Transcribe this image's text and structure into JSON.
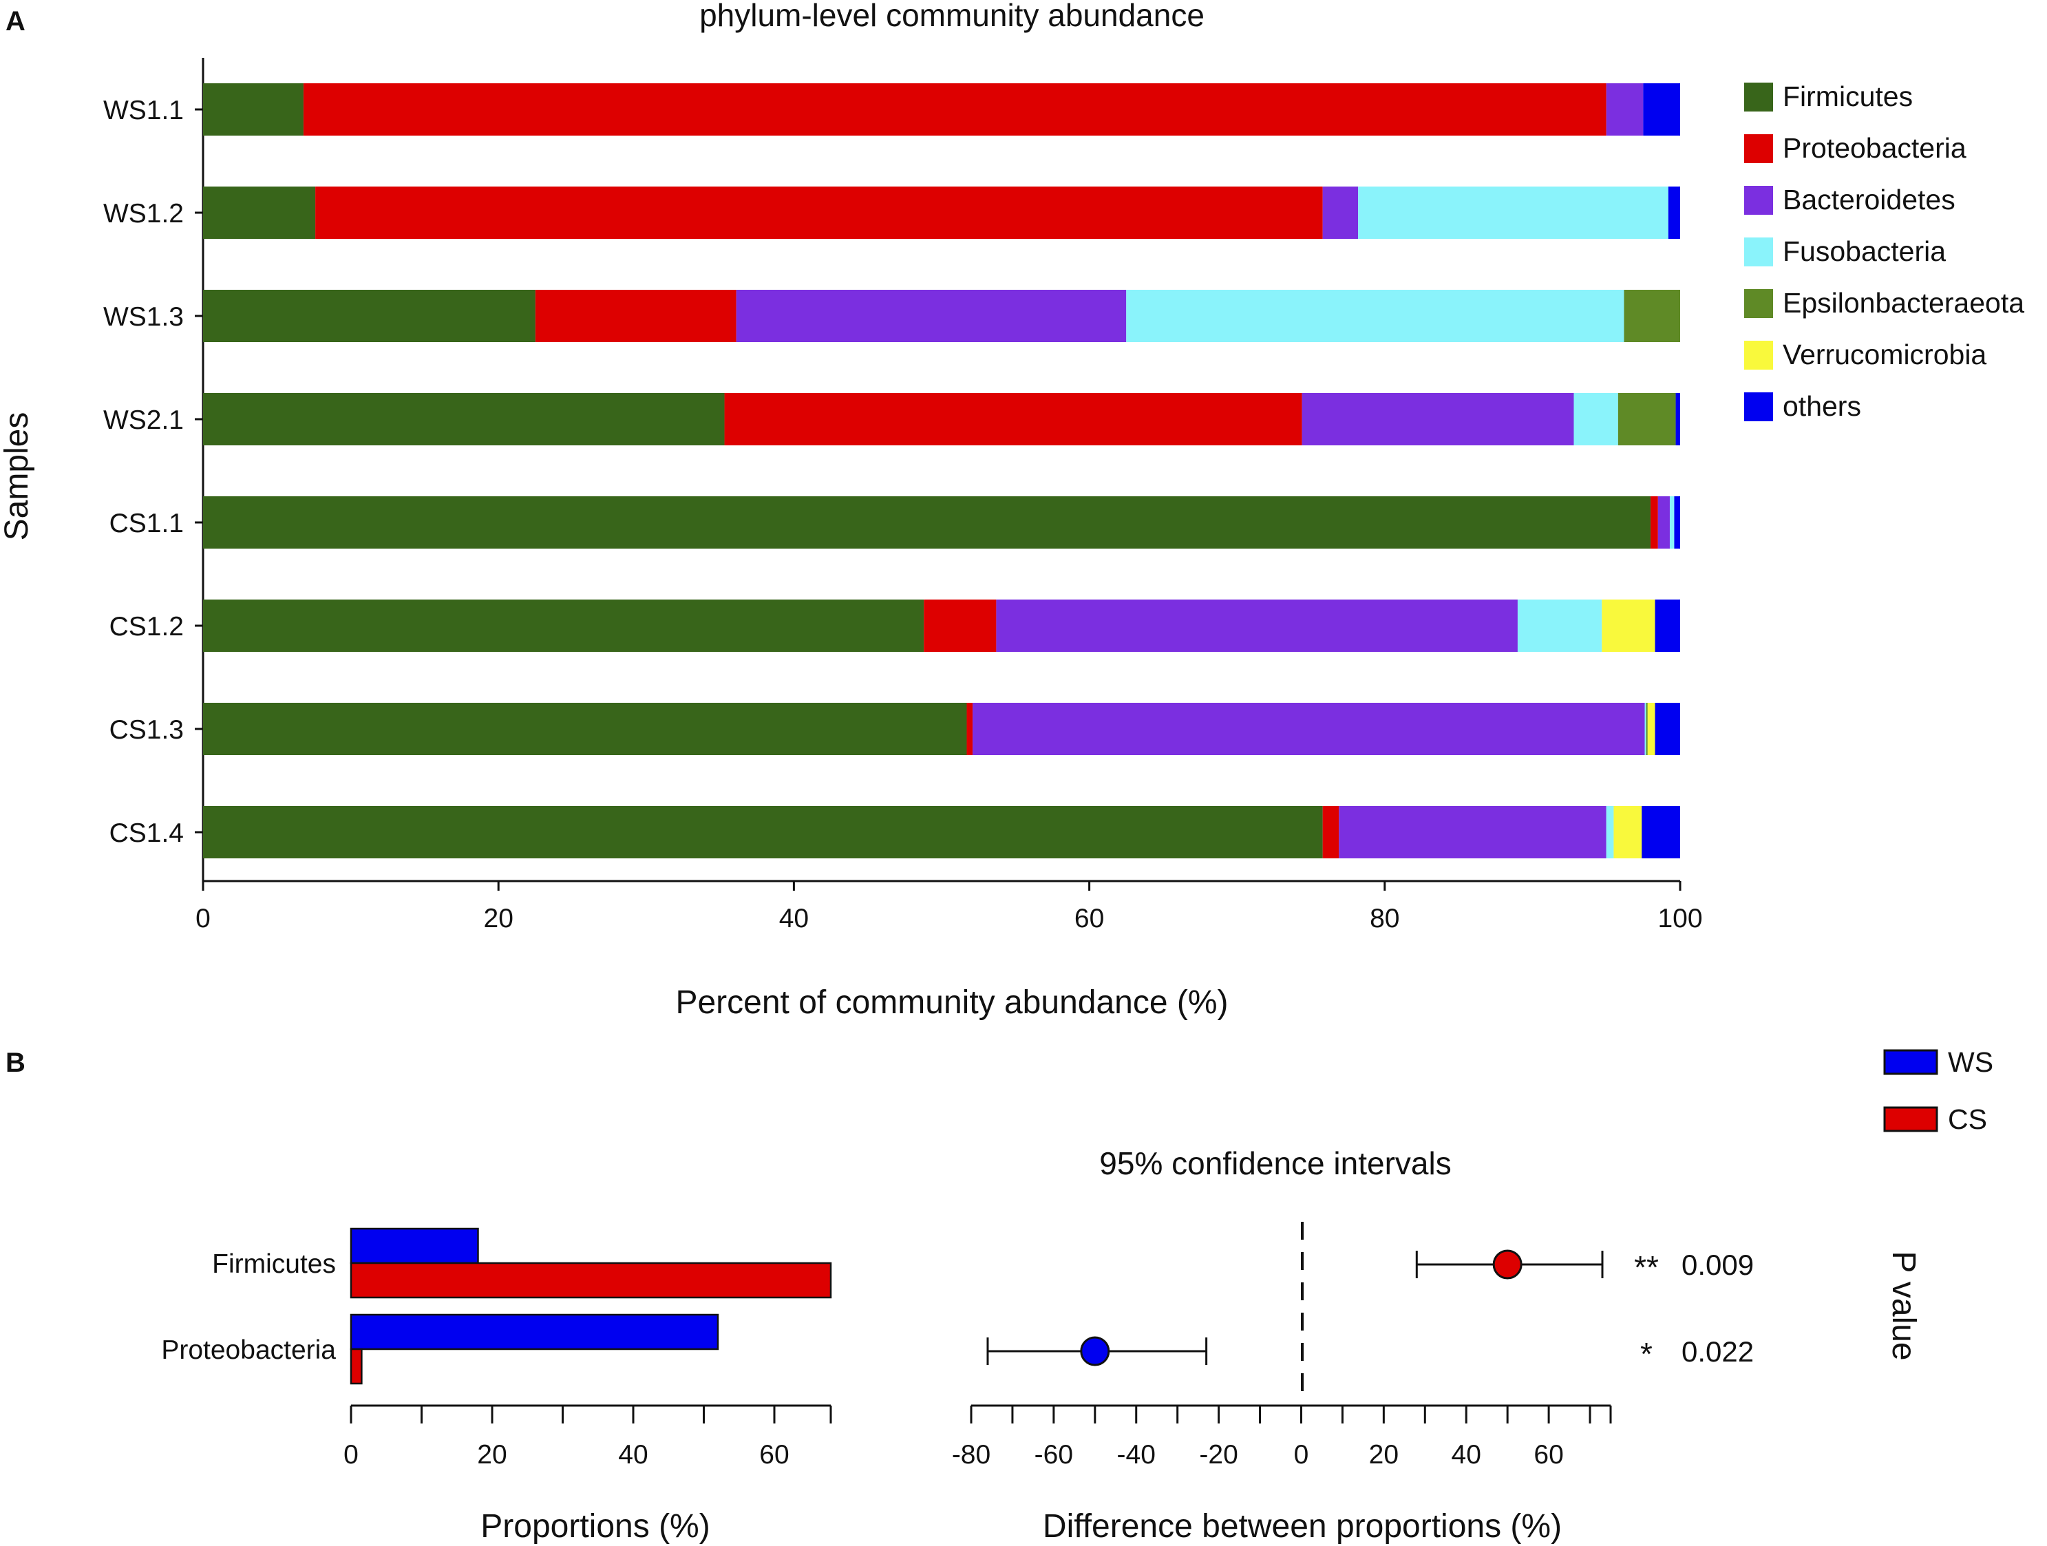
{
  "panel_a_letter": "A",
  "panel_b_letter": "B",
  "chart_data": [
    {
      "id": "A",
      "type": "bar",
      "orientation": "horizontal",
      "stacked": true,
      "title": "phylum-level community abundance",
      "xlabel": "Percent of community abundance (%)",
      "ylabel": "Samples",
      "xlim": [
        0,
        100
      ],
      "xticks": [
        "0",
        "20",
        "40",
        "60",
        "80",
        "100"
      ],
      "categories": [
        "WS1.1",
        "WS1.2",
        "WS1.3",
        "WS2.1",
        "CS1.1",
        "CS1.2",
        "CS1.3",
        "CS1.4"
      ],
      "series": [
        {
          "name": "Firmicutes",
          "color": "#38651a",
          "values": [
            6.8,
            7.6,
            22.5,
            35.3,
            98.0,
            48.8,
            51.7,
            75.8
          ]
        },
        {
          "name": "Proteobacteria",
          "color": "#dd0000",
          "values": [
            88.2,
            68.2,
            13.6,
            39.1,
            0.5,
            4.9,
            0.4,
            1.1
          ]
        },
        {
          "name": "Bacteroidetes",
          "color": "#7b2fe0",
          "values": [
            2.5,
            2.4,
            26.4,
            18.4,
            0.8,
            35.3,
            45.5,
            18.1
          ]
        },
        {
          "name": "Fusobacteria",
          "color": "#8af3fb",
          "values": [
            0,
            21.0,
            33.7,
            3.0,
            0.3,
            5.7,
            0.1,
            0.5
          ]
        },
        {
          "name": "Epsilonbacteraeota",
          "color": "#5f8a26",
          "values": [
            0,
            0,
            3.8,
            3.9,
            0,
            0,
            0.1,
            0
          ]
        },
        {
          "name": "Verrucomicrobia",
          "color": "#f9f93c",
          "values": [
            0,
            0,
            0,
            0,
            0,
            3.6,
            0.5,
            1.9
          ]
        },
        {
          "name": "others",
          "color": "#0000f0",
          "values": [
            2.5,
            0.8,
            0,
            0.3,
            0.4,
            1.7,
            1.7,
            2.6
          ]
        }
      ]
    },
    {
      "id": "B-left",
      "type": "bar",
      "orientation": "horizontal",
      "xlabel": "Proportions (%)",
      "xlim": [
        0,
        68
      ],
      "xticks": [
        "0",
        "20",
        "40",
        "60"
      ],
      "categories": [
        "Firmicutes",
        "Proteobacteria"
      ],
      "series": [
        {
          "name": "WS",
          "color": "#0000f0",
          "values": [
            18,
            52
          ]
        },
        {
          "name": "CS",
          "color": "#dd0000",
          "values": [
            68,
            1.5
          ]
        }
      ]
    },
    {
      "id": "B-right",
      "type": "scatter",
      "title": "95% confidence intervals",
      "xlabel": "Difference between proportions (%)",
      "ylabel": "P value",
      "xlim": [
        -80,
        75
      ],
      "xticks": [
        "-80",
        "-60",
        "-40",
        "-20",
        "0",
        "20",
        "40",
        "60"
      ],
      "categories": [
        "Firmicutes",
        "Proteobacteria"
      ],
      "points": [
        {
          "category": "Firmicutes",
          "estimate": 50,
          "ci_low": 28,
          "ci_high": 73,
          "color": "#dd0000",
          "stars": "**",
          "p_value": "0.009"
        },
        {
          "category": "Proteobacteria",
          "estimate": -50,
          "ci_low": -76,
          "ci_high": -23,
          "color": "#0000f0",
          "stars": "*",
          "p_value": "0.022"
        }
      ],
      "legend": [
        {
          "name": "WS",
          "color": "#0000f0"
        },
        {
          "name": "CS",
          "color": "#dd0000"
        }
      ]
    }
  ]
}
